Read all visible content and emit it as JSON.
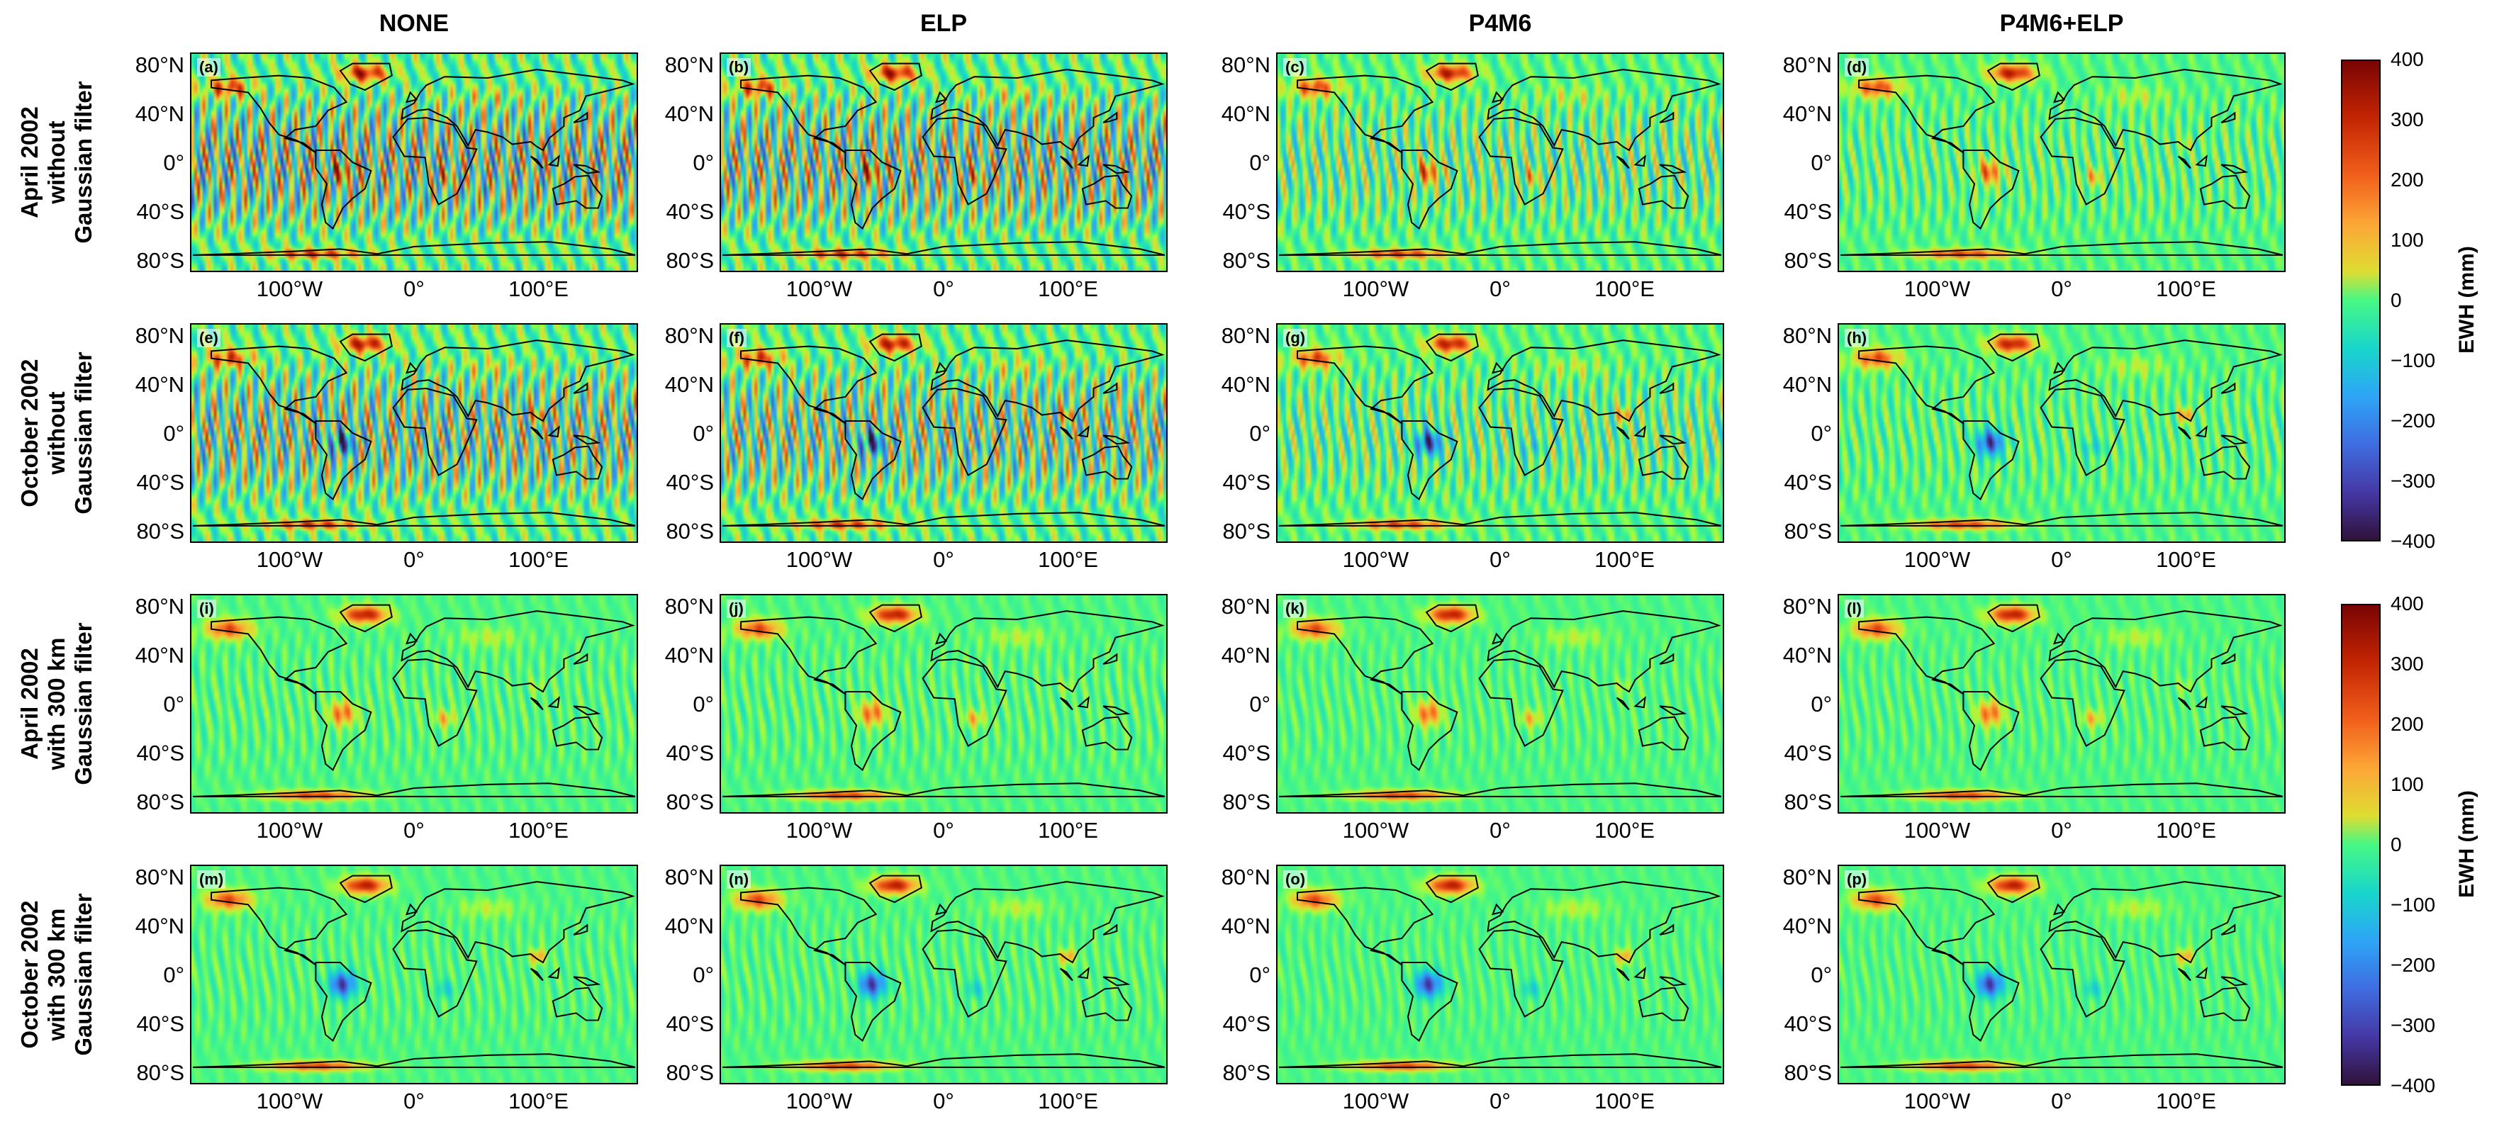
{
  "columns": [
    "NONE",
    "ELP",
    "P4M6",
    "P4M6+ELP"
  ],
  "rows": [
    {
      "lines": [
        "April 2002",
        "without",
        "Gaussian filter"
      ]
    },
    {
      "lines": [
        "October 2002",
        "without",
        "Gaussian filter"
      ]
    },
    {
      "lines": [
        "April 2002",
        "with 300 km",
        "Gaussian filter"
      ]
    },
    {
      "lines": [
        "October 2002",
        "with 300 km",
        "Gaussian filter"
      ]
    }
  ],
  "panel_labels": [
    "(a)",
    "(b)",
    "(c)",
    "(d)",
    "(e)",
    "(f)",
    "(g)",
    "(h)",
    "(i)",
    "(j)",
    "(k)",
    "(l)",
    "(m)",
    "(n)",
    "(o)",
    "(p)"
  ],
  "y_ticks": [
    "80°N",
    "40°N",
    "0°",
    "40°S",
    "80°S"
  ],
  "x_ticks": [
    "100°W",
    "0°",
    "100°E"
  ],
  "colorbar": {
    "label": "EWH (mm)",
    "ticks": [
      "400",
      "300",
      "200",
      "100",
      "0",
      "−100",
      "−200",
      "−300",
      "−400"
    ],
    "range": [
      -400,
      400
    ],
    "colormap": "turbo"
  }
}
